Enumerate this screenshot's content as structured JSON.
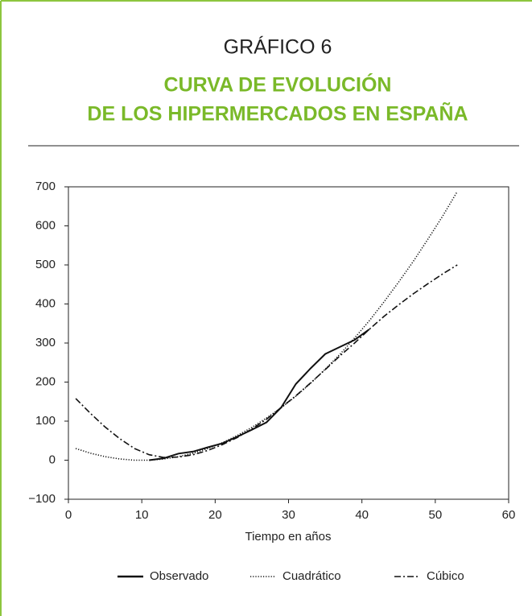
{
  "chart_data": {
    "type": "line",
    "label": "GRÁFICO 6",
    "title": [
      "CURVA DE EVOLUCIÓN",
      "DE LOS HIPERMERCADOS EN ESPAÑA"
    ],
    "xlabel": "Tiempo en años",
    "x": [
      1,
      3,
      5,
      7,
      9,
      11,
      13,
      15,
      17,
      19,
      21,
      23,
      25,
      27,
      29,
      31,
      33,
      35,
      37,
      39,
      41,
      43,
      45,
      47,
      49,
      51,
      53
    ],
    "series": [
      {
        "name": "Observado",
        "color": "#111111",
        "linestyle": "solid",
        "values": [
          null,
          null,
          null,
          null,
          null,
          0,
          5,
          17,
          22,
          33,
          43,
          60,
          78,
          97,
          135,
          195,
          235,
          272,
          290,
          308,
          335,
          null,
          null,
          null,
          null,
          null,
          null
        ]
      },
      {
        "name": "Cuadrático",
        "color": "#111111",
        "linestyle": "dotted",
        "values": [
          30,
          18,
          9,
          3,
          0,
          0,
          3,
          9,
          18,
          30,
          45,
          63,
          84,
          108,
          134,
          164,
          197,
          233,
          271,
          313,
          357,
          405,
          456,
          509,
          566,
          625,
          688
        ]
      },
      {
        "name": "Cúbico",
        "color": "#111111",
        "linestyle": "dashdot",
        "values": [
          158,
          120,
          85,
          55,
          30,
          14,
          7,
          8,
          14,
          25,
          40,
          58,
          80,
          105,
          135,
          165,
          198,
          232,
          267,
          300,
          335,
          368,
          398,
          426,
          452,
          477,
          500
        ]
      }
    ],
    "xlim": [
      0,
      60
    ],
    "xticks": [
      0,
      10,
      20,
      30,
      40,
      50,
      60
    ],
    "ylim": [
      -100,
      700
    ],
    "yticks": [
      {
        "value": -100,
        "label": "−100"
      },
      0,
      100,
      200,
      300,
      400,
      500,
      600,
      700
    ],
    "grid": false,
    "legend": "bottom"
  }
}
